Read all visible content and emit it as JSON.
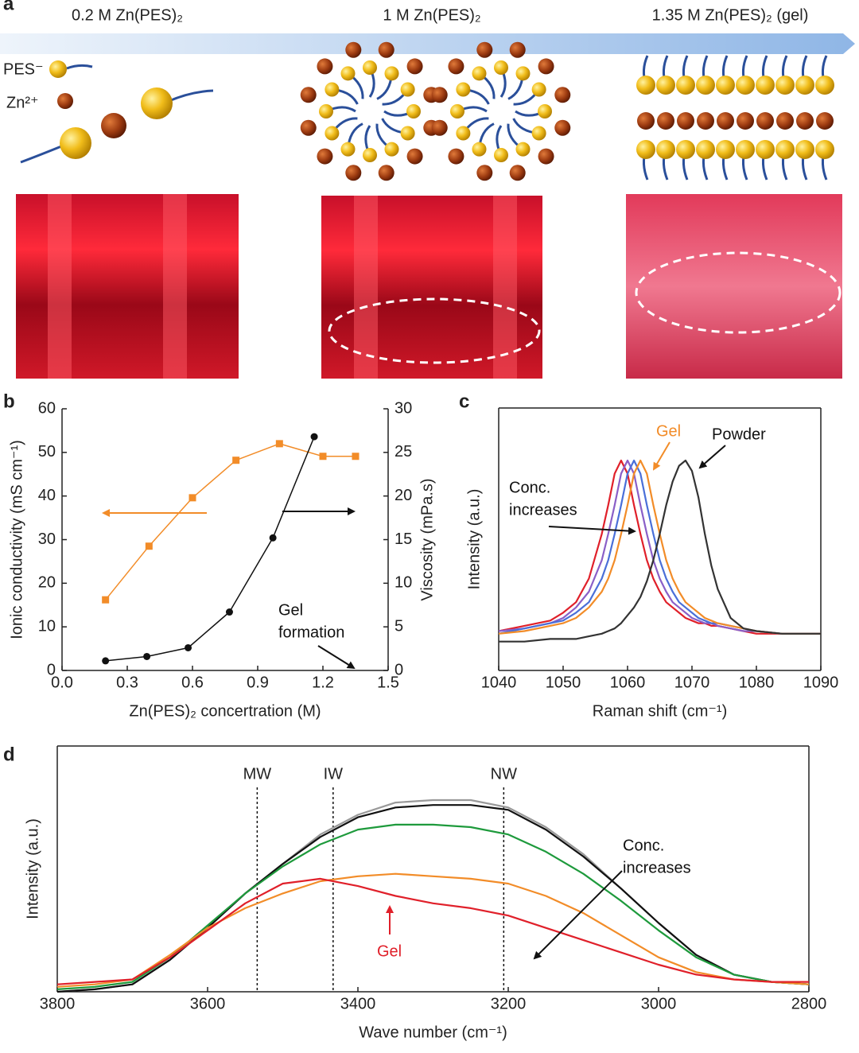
{
  "panel_a": {
    "label": "a",
    "conditions": [
      "0.2 M Zn(PES)₂",
      "1 M Zn(PES)₂",
      "1.35 M Zn(PES)₂ (gel)"
    ],
    "legend": [
      "PES⁻",
      "Zn²⁺"
    ]
  },
  "chart_data": [
    {
      "type": "line",
      "panel": "b",
      "xlabel": "Zn(PES)₂ concertration (M)",
      "ylabel": "Ionic conductivity (mS cm⁻¹)",
      "y2label": "Viscosity (mPa.s)",
      "xlim": [
        0,
        1.5
      ],
      "xticks": [
        {
          "value": 0,
          "label": "0.0"
        },
        0.3,
        0.6,
        0.9,
        1.2,
        1.5
      ],
      "ylim": [
        0,
        60
      ],
      "yticks": [
        0,
        10,
        20,
        30,
        40,
        50,
        60
      ],
      "y2lim": [
        0,
        30
      ],
      "y2ticks": [
        0,
        5,
        10,
        15,
        20,
        25,
        30
      ],
      "series": [
        {
          "color": "#f28c28",
          "marker": "square",
          "x": [
            0.2,
            0.4,
            0.6,
            0.8,
            1.0,
            1.2,
            1.35
          ],
          "values": [
            16.2,
            28.5,
            39.6,
            48.2,
            52,
            49.1,
            49.1
          ]
        },
        {
          "color": "#111111",
          "marker": "circle",
          "axis": "y2",
          "x": [
            0.2,
            0.39,
            0.58,
            0.77,
            0.97,
            1.16
          ],
          "values": [
            1.1,
            1.6,
            2.6,
            6.7,
            15.2,
            26.8
          ]
        }
      ],
      "annotations": [
        {
          "lines": [
            "Gel",
            "formation"
          ],
          "color": "#111111"
        }
      ]
    },
    {
      "type": "line",
      "panel": "c",
      "xlabel": "Raman shift (cm⁻¹)",
      "ylabel": "Intensity (a.u.)",
      "xlim": [
        1040,
        1090
      ],
      "xticks": [
        1040,
        1050,
        1060,
        1070,
        1080,
        1090
      ],
      "ylim": [
        0,
        1
      ],
      "x": [
        1040,
        1044,
        1048,
        1050,
        1052,
        1054,
        1056,
        1057,
        1058,
        1059,
        1060,
        1061,
        1062,
        1063,
        1064,
        1065,
        1066,
        1067,
        1068,
        1069,
        1070,
        1071,
        1072,
        1073,
        1074,
        1076,
        1078,
        1080,
        1084,
        1088,
        1090
      ],
      "series": [
        {
          "color": "#e0202a",
          "values": [
            0.15,
            0.17,
            0.19,
            0.22,
            0.26,
            0.35,
            0.52,
            0.63,
            0.75,
            0.8,
            0.75,
            0.63,
            0.52,
            0.42,
            0.35,
            0.3,
            0.26,
            0.24,
            0.22,
            0.2,
            0.19,
            0.18,
            0.18,
            0.17,
            0.17,
            0.16,
            0.15,
            0.14,
            0.14,
            0.14,
            0.14
          ]
        },
        {
          "color": "#8a5fc7",
          "values": [
            0.15,
            0.16,
            0.18,
            0.2,
            0.24,
            0.3,
            0.42,
            0.52,
            0.63,
            0.75,
            0.8,
            0.75,
            0.63,
            0.52,
            0.42,
            0.35,
            0.3,
            0.26,
            0.24,
            0.22,
            0.2,
            0.19,
            0.18,
            0.18,
            0.17,
            0.16,
            0.15,
            0.15,
            0.14,
            0.14,
            0.14
          ]
        },
        {
          "color": "#4a6fd8",
          "values": [
            0.14,
            0.16,
            0.18,
            0.19,
            0.22,
            0.26,
            0.35,
            0.42,
            0.52,
            0.63,
            0.75,
            0.8,
            0.75,
            0.63,
            0.52,
            0.42,
            0.35,
            0.3,
            0.26,
            0.24,
            0.22,
            0.2,
            0.19,
            0.18,
            0.18,
            0.17,
            0.16,
            0.15,
            0.14,
            0.14,
            0.14
          ]
        },
        {
          "color": "#f28c28",
          "values": [
            0.14,
            0.15,
            0.17,
            0.18,
            0.2,
            0.24,
            0.3,
            0.35,
            0.42,
            0.52,
            0.63,
            0.75,
            0.8,
            0.75,
            0.63,
            0.52,
            0.42,
            0.35,
            0.3,
            0.26,
            0.24,
            0.22,
            0.2,
            0.19,
            0.18,
            0.17,
            0.16,
            0.15,
            0.14,
            0.14,
            0.14
          ]
        },
        {
          "color": "#333333",
          "values": [
            0.11,
            0.11,
            0.12,
            0.12,
            0.12,
            0.13,
            0.14,
            0.15,
            0.16,
            0.18,
            0.21,
            0.24,
            0.28,
            0.34,
            0.42,
            0.52,
            0.63,
            0.72,
            0.78,
            0.8,
            0.76,
            0.66,
            0.52,
            0.4,
            0.31,
            0.2,
            0.16,
            0.15,
            0.14,
            0.14,
            0.14
          ]
        }
      ],
      "annotations": [
        {
          "lines": [
            "Gel"
          ],
          "color": "#f28c28"
        },
        {
          "lines": [
            "Powder"
          ],
          "color": "#111111"
        },
        {
          "lines": [
            "Conc.",
            "increases"
          ],
          "color": "#111111"
        }
      ]
    },
    {
      "type": "line",
      "panel": "d",
      "xlabel": "Wave number (cm⁻¹)",
      "ylabel": "Intensity (a.u.)",
      "xlim": [
        3800,
        2800
      ],
      "xticks": [
        3800,
        3600,
        3400,
        3200,
        3000,
        2800
      ],
      "ylim": [
        0,
        1
      ],
      "x": [
        3800,
        3750,
        3700,
        3650,
        3600,
        3550,
        3500,
        3450,
        3400,
        3350,
        3300,
        3250,
        3200,
        3150,
        3100,
        3050,
        3000,
        2950,
        2900,
        2850,
        2800
      ],
      "series": [
        {
          "color": "#999999",
          "values": [
            0.0,
            0.01,
            0.03,
            0.13,
            0.26,
            0.4,
            0.52,
            0.64,
            0.72,
            0.77,
            0.78,
            0.78,
            0.75,
            0.67,
            0.56,
            0.42,
            0.28,
            0.15,
            0.07,
            0.04,
            0.03
          ]
        },
        {
          "color": "#111111",
          "values": [
            0.0,
            0.01,
            0.03,
            0.13,
            0.26,
            0.4,
            0.52,
            0.63,
            0.71,
            0.75,
            0.76,
            0.76,
            0.74,
            0.66,
            0.55,
            0.42,
            0.28,
            0.15,
            0.07,
            0.04,
            0.03
          ]
        },
        {
          "color": "#1e9a3c",
          "values": [
            0.01,
            0.02,
            0.04,
            0.14,
            0.27,
            0.4,
            0.51,
            0.6,
            0.66,
            0.68,
            0.68,
            0.67,
            0.64,
            0.57,
            0.48,
            0.37,
            0.25,
            0.14,
            0.07,
            0.04,
            0.03
          ]
        },
        {
          "color": "#f28c28",
          "values": [
            0.02,
            0.03,
            0.05,
            0.15,
            0.26,
            0.34,
            0.4,
            0.45,
            0.47,
            0.48,
            0.47,
            0.46,
            0.44,
            0.39,
            0.32,
            0.23,
            0.14,
            0.08,
            0.05,
            0.04,
            0.03
          ]
        },
        {
          "color": "#e0202a",
          "values": [
            0.03,
            0.04,
            0.05,
            0.14,
            0.25,
            0.36,
            0.44,
            0.46,
            0.43,
            0.39,
            0.36,
            0.34,
            0.31,
            0.26,
            0.21,
            0.16,
            0.11,
            0.07,
            0.05,
            0.04,
            0.04
          ]
        }
      ],
      "reference_lines": [
        {
          "label": "MW",
          "x": 3534
        },
        {
          "label": "IW",
          "x": 3433
        },
        {
          "label": "NW",
          "x": 3206
        }
      ],
      "annotations": [
        {
          "lines": [
            "Conc.",
            "increases"
          ],
          "color": "#111111"
        },
        {
          "lines": [
            "Gel"
          ],
          "color": "#e0202a"
        }
      ]
    }
  ]
}
